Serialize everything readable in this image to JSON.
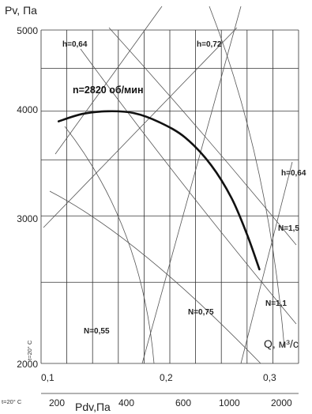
{
  "chart_data": {
    "type": "line",
    "title": "",
    "ylabel": "Pv, Па",
    "xlabel": "Q, м³/с",
    "xlim": [
      0.1,
      0.35
    ],
    "ylim": [
      2000,
      5000
    ],
    "x_ticks": [
      "0,1",
      "0,2",
      "0,3"
    ],
    "y_ticks": [
      "5000",
      "4000",
      "3000",
      "2000"
    ],
    "dynamic_pressure_axis": {
      "label": "Pdv,Па",
      "prefix": "t=20° C",
      "ticks": [
        "200",
        "400",
        "600",
        "1000",
        "2000"
      ]
    },
    "side_label": "t=20° C",
    "grid": true,
    "series": [
      {
        "name": "n=2820 об/мин",
        "x": [
          0.117,
          0.14,
          0.165,
          0.19,
          0.215,
          0.24,
          0.265,
          0.285,
          0.3,
          0.312
        ],
        "y": [
          3890,
          3970,
          4000,
          3980,
          3880,
          3720,
          3450,
          3150,
          2850,
          2590
        ]
      }
    ],
    "efficiency_labels": [
      "h=0,64",
      "h=0,72",
      "h=0,64"
    ],
    "power_labels": [
      "N=0,55",
      "N=0,75",
      "N=1,1",
      "N=1,5"
    ]
  }
}
